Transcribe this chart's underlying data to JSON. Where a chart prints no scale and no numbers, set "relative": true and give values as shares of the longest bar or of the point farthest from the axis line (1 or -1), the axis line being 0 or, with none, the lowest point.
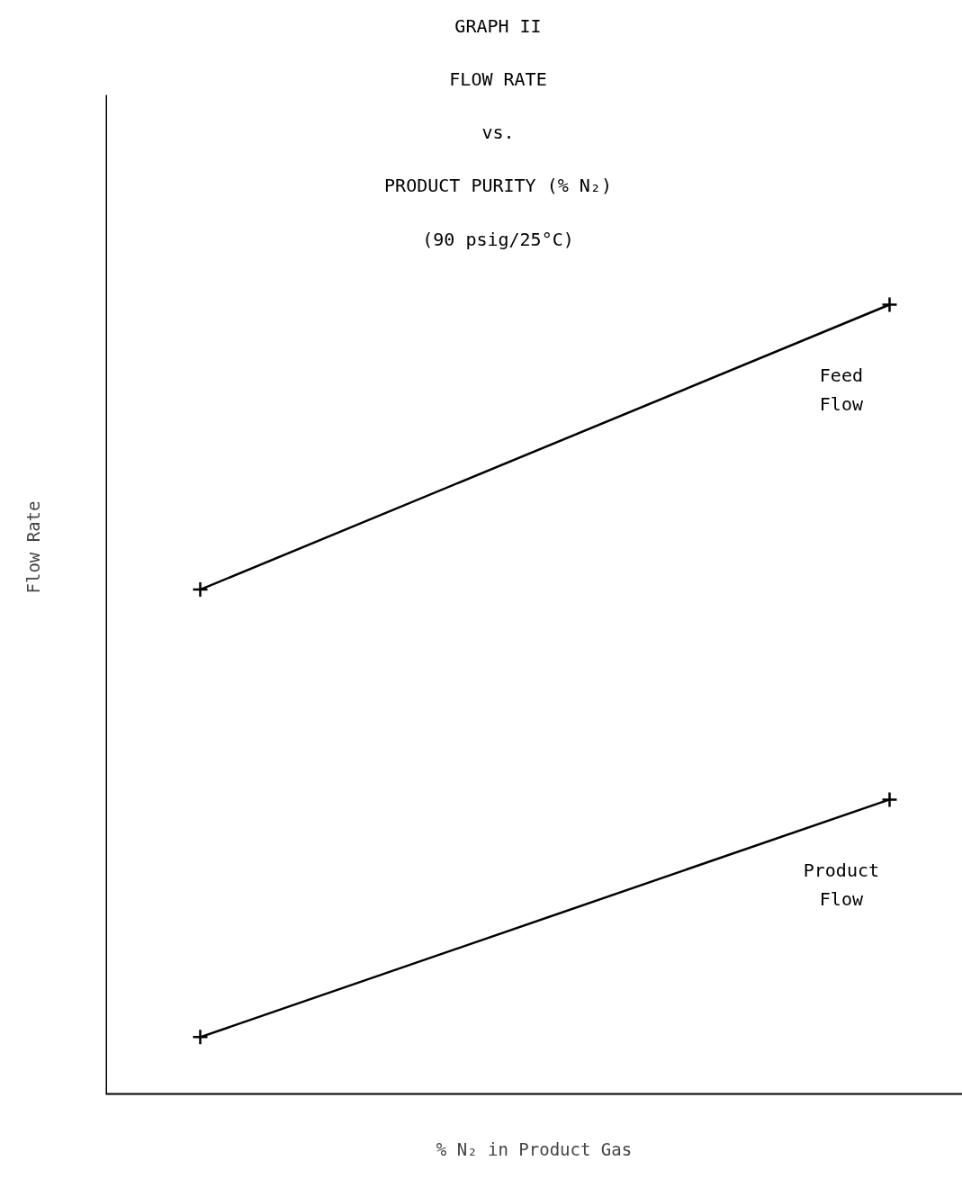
{
  "chart_data": {
    "type": "line",
    "relative": true,
    "title": "GRAPH II",
    "subtitle": "FLOW RATE\nvs.\nPRODUCT PURITY (% N₂)\n(90 psig/25°C)",
    "xlabel": "% N₂ in Product Gas",
    "ylabel": "Flow Rate",
    "categories": [
      null,
      null
    ],
    "marker": "cross",
    "line_style": "solid",
    "series": [
      {
        "name": "Feed Flow",
        "color": "#000000",
        "values": [
          0.639,
          1
        ]
      },
      {
        "name": "Product Flow",
        "color": "#000000",
        "values": [
          0.072,
          0.373
        ]
      }
    ]
  }
}
